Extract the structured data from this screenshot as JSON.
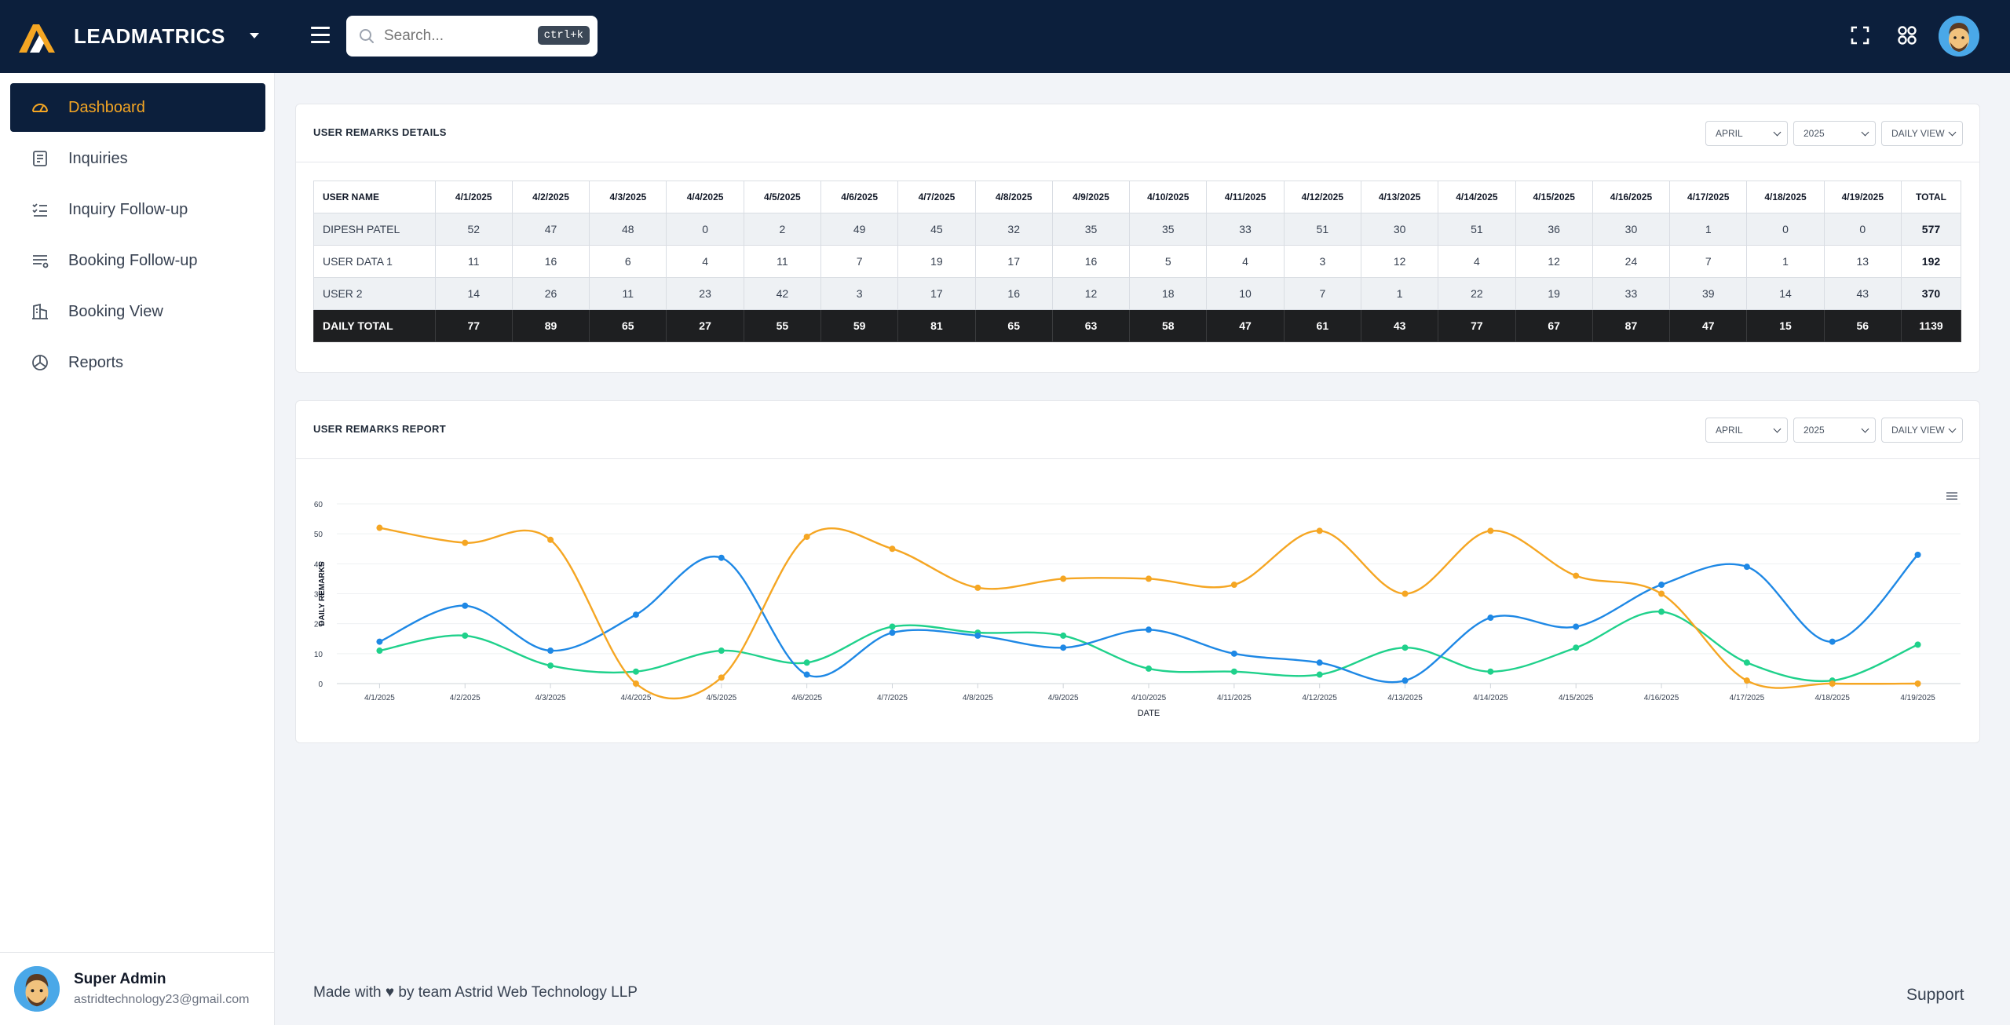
{
  "brand": {
    "name": "LEADMATRICS"
  },
  "search": {
    "placeholder": "Search...",
    "shortcut": "ctrl+k"
  },
  "sidebar": {
    "items": [
      {
        "label": "Dashboard",
        "icon": "gauge-icon",
        "active": true
      },
      {
        "label": "Inquiries",
        "icon": "clipboard-icon",
        "active": false
      },
      {
        "label": "Inquiry Follow-up",
        "icon": "checklist-icon",
        "active": false
      },
      {
        "label": "Booking Follow-up",
        "icon": "list-icon",
        "active": false
      },
      {
        "label": "Booking View",
        "icon": "building-icon",
        "active": false
      },
      {
        "label": "Reports",
        "icon": "pie-chart-icon",
        "active": false
      }
    ],
    "profile": {
      "name": "Super Admin",
      "email": "astridtechnology23@gmail.com"
    }
  },
  "details": {
    "title": "USER REMARKS DETAILS",
    "month": "APRIL",
    "year": "2025",
    "view": "DAILY VIEW",
    "columns": [
      "USER NAME",
      "4/1/2025",
      "4/2/2025",
      "4/3/2025",
      "4/4/2025",
      "4/5/2025",
      "4/6/2025",
      "4/7/2025",
      "4/8/2025",
      "4/9/2025",
      "4/10/2025",
      "4/11/2025",
      "4/12/2025",
      "4/13/2025",
      "4/14/2025",
      "4/15/2025",
      "4/16/2025",
      "4/17/2025",
      "4/18/2025",
      "4/19/2025",
      "TOTAL"
    ],
    "rows": [
      [
        "DIPESH PATEL",
        "52",
        "47",
        "48",
        "0",
        "2",
        "49",
        "45",
        "32",
        "35",
        "35",
        "33",
        "51",
        "30",
        "51",
        "36",
        "30",
        "1",
        "0",
        "0",
        "577"
      ],
      [
        "USER DATA 1",
        "11",
        "16",
        "6",
        "4",
        "11",
        "7",
        "19",
        "17",
        "16",
        "5",
        "4",
        "3",
        "12",
        "4",
        "12",
        "24",
        "7",
        "1",
        "13",
        "192"
      ],
      [
        "USER 2",
        "14",
        "26",
        "11",
        "23",
        "42",
        "3",
        "17",
        "16",
        "12",
        "18",
        "10",
        "7",
        "1",
        "22",
        "19",
        "33",
        "39",
        "14",
        "43",
        "370"
      ]
    ],
    "footer": [
      "DAILY TOTAL",
      "77",
      "89",
      "65",
      "27",
      "55",
      "59",
      "81",
      "65",
      "63",
      "58",
      "47",
      "61",
      "43",
      "77",
      "67",
      "87",
      "47",
      "15",
      "56",
      "1139"
    ]
  },
  "report": {
    "title": "USER REMARKS REPORT",
    "month": "APRIL",
    "year": "2025",
    "view": "DAILY VIEW"
  },
  "chart_data": {
    "type": "line",
    "title": "",
    "xlabel": "DATE",
    "ylabel": "DAILY REMARKS",
    "ylim": [
      0,
      60
    ],
    "yticks": [
      0,
      10,
      20,
      30,
      40,
      50,
      60
    ],
    "categories": [
      "4/1/2025",
      "4/2/2025",
      "4/3/2025",
      "4/4/2025",
      "4/5/2025",
      "4/6/2025",
      "4/7/2025",
      "4/8/2025",
      "4/9/2025",
      "4/10/2025",
      "4/11/2025",
      "4/12/2025",
      "4/13/2025",
      "4/14/2025",
      "4/15/2025",
      "4/16/2025",
      "4/17/2025",
      "4/18/2025",
      "4/19/2025"
    ],
    "series": [
      {
        "name": "DIPESH PATEL",
        "color": "#f5a623",
        "values": [
          52,
          47,
          48,
          0,
          2,
          49,
          45,
          32,
          35,
          35,
          33,
          51,
          30,
          51,
          36,
          30,
          1,
          0,
          0
        ]
      },
      {
        "name": "USER DATA 1",
        "color": "#1fd18b",
        "values": [
          11,
          16,
          6,
          4,
          11,
          7,
          19,
          17,
          16,
          5,
          4,
          3,
          12,
          4,
          12,
          24,
          7,
          1,
          13
        ]
      },
      {
        "name": "USER 2",
        "color": "#1e88e5",
        "values": [
          14,
          26,
          11,
          23,
          42,
          3,
          17,
          16,
          12,
          18,
          10,
          7,
          1,
          22,
          19,
          33,
          39,
          14,
          43
        ]
      }
    ],
    "grid": true
  },
  "footer": {
    "text": "Made with ♥ by team Astrid Web Technology LLP",
    "support": "Support"
  },
  "colors": {
    "navy": "#0c1f3c",
    "accent": "#f5a623"
  }
}
